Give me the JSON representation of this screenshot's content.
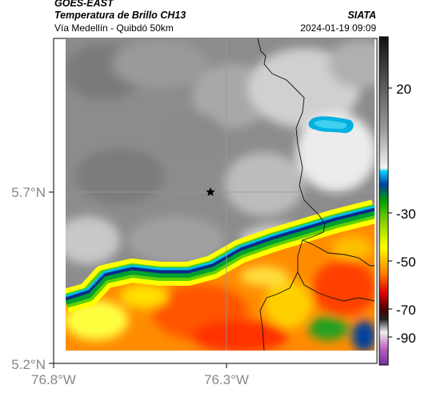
{
  "header": {
    "satellite": "GOES-EAST",
    "product": "Temperatura de Brillo CH13",
    "organization": "SIATA",
    "region": "Vía Medellín - Quibdó 50km",
    "datetime": "2024-01-19 09:09"
  },
  "map": {
    "lat_ticks": [
      "5.7°N",
      "5.2°N"
    ],
    "lon_ticks": [
      "76.8°W",
      "76.3°W"
    ],
    "marker": "star-marker",
    "colors": {
      "cloud_cold": "#00a8d0",
      "warm_ground": "#ff5a00",
      "coast_blue": "#0a2a8a"
    }
  },
  "colorbar": {
    "labels": [
      "20",
      "-30",
      "-50",
      "-70",
      "-90"
    ]
  }
}
